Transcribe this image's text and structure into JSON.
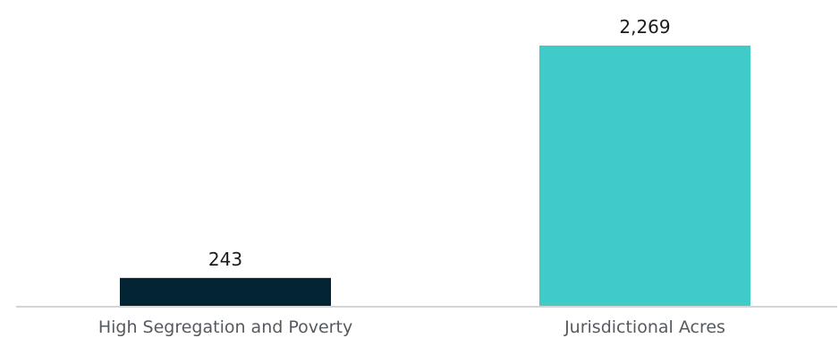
{
  "chart_data": {
    "type": "bar",
    "categories": [
      "High Segregation and Poverty",
      "Jurisdictional Acres"
    ],
    "values": [
      243,
      2269
    ],
    "data_labels": [
      "243",
      "2,269"
    ],
    "colors": [
      "#032433",
      "#40cac8"
    ],
    "title": "",
    "xlabel": "",
    "ylabel": "",
    "ylim": [
      0,
      2269
    ],
    "grid": false,
    "legend": "none"
  }
}
